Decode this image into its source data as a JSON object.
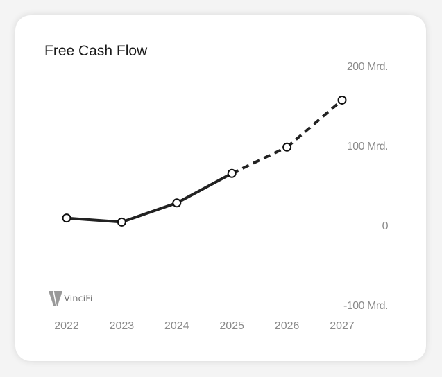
{
  "chart_data": {
    "type": "line",
    "title": "Free Cash Flow",
    "categories": [
      "2022",
      "2023",
      "2024",
      "2025",
      "2026",
      "2027"
    ],
    "series": [
      {
        "values": [
          9,
          4,
          28,
          65,
          98,
          157
        ],
        "actual_through": "2025",
        "estimate_style": "dashed"
      }
    ],
    "ylim": [
      -100,
      200
    ],
    "y_ticks": [
      200,
      100,
      0,
      -100
    ],
    "y_tick_labels": [
      "200 Mrd.",
      "100 Mrd.",
      "0",
      "-100 Mrd."
    ],
    "y_axis_position": "right",
    "grid": false,
    "line_color": "#222222"
  },
  "branding": {
    "logo_text": "VinciFi"
  }
}
